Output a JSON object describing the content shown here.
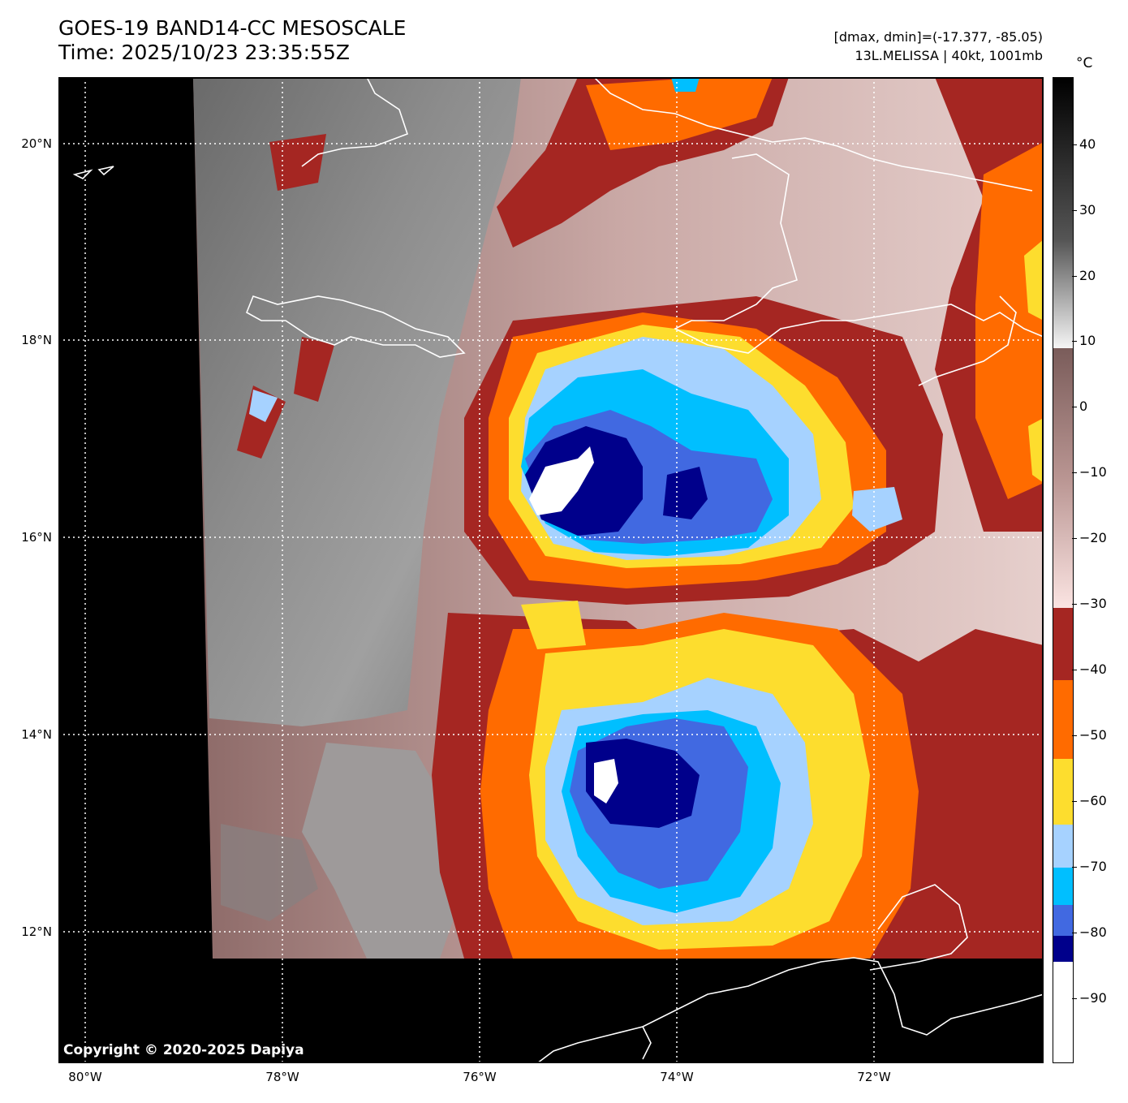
{
  "header": {
    "title_line1": "GOES-19 BAND14-CC MESOSCALE",
    "title_line2": "Time: 2025/10/23 23:35:55Z",
    "stats_line1": "[dmax, dmin]=(-17.377, -85.05)",
    "stats_line2": "13L.MELISSA | 40kt, 1001mb"
  },
  "map": {
    "lat_labels": [
      "20°N",
      "18°N",
      "16°N",
      "14°N",
      "12°N"
    ],
    "lon_labels": [
      "80°W",
      "78°W",
      "76°W",
      "74°W",
      "72°W"
    ],
    "copyright": "Copyright © 2020-2025 Dapiya",
    "no_data_color": "#000000",
    "coastline_color": "#ffffff",
    "grid_style": "dotted white"
  },
  "colorbar": {
    "unit": "°C",
    "ticks": [
      "40",
      "30",
      "20",
      "10",
      "0",
      "−10",
      "−20",
      "−30",
      "−40",
      "−50",
      "−60",
      "−70",
      "−80",
      "−90"
    ],
    "range": [
      -100,
      50
    ],
    "colors": {
      "warm_gray_top": "#000000",
      "warm_gray_bottom": "#f5f5f5",
      "pink_top": "#7a5c5a",
      "pink_bottom": "#fbe4e2",
      "dark_red": "#a52622",
      "orange": "#ff6b00",
      "yellow": "#fddd2e",
      "light_blue": "#a6d2ff",
      "sky_blue": "#00bfff",
      "royal_blue": "#4169e1",
      "navy": "#00008b",
      "white": "#ffffff"
    }
  }
}
